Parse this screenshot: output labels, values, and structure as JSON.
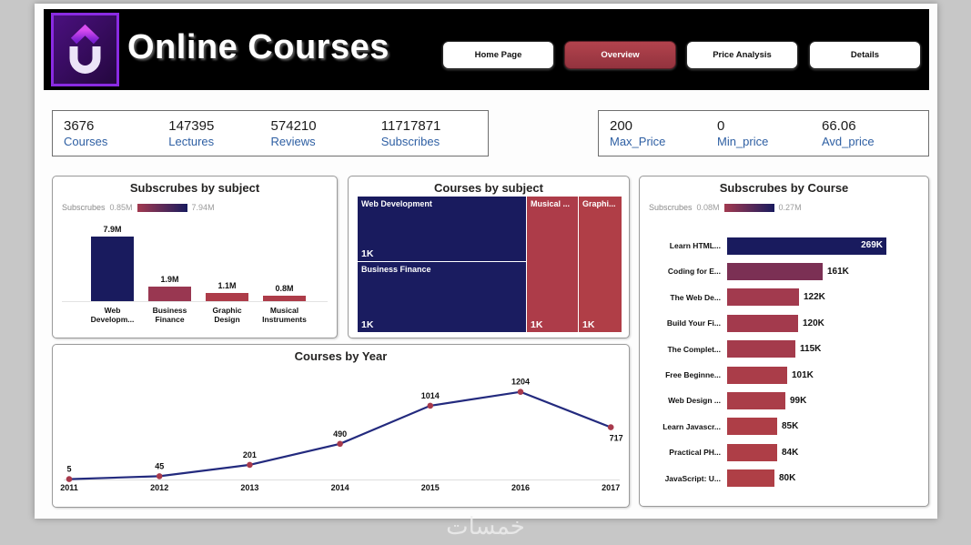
{
  "header": {
    "title": "Online Courses",
    "logo_letter": "U",
    "nav": [
      {
        "label": "Home Page",
        "active": false
      },
      {
        "label": "Overview",
        "active": true
      },
      {
        "label": "Price Analysis",
        "active": false
      },
      {
        "label": "Details",
        "active": false
      }
    ]
  },
  "kpi_left": [
    {
      "value": "3676",
      "label": "Courses"
    },
    {
      "value": "147395",
      "label": "Lectures"
    },
    {
      "value": "574210",
      "label": "Reviews"
    },
    {
      "value": "11717871",
      "label": "Subscribes"
    }
  ],
  "kpi_right": [
    {
      "value": "200",
      "label": "Max_Price"
    },
    {
      "value": "0",
      "label": "Min_price"
    },
    {
      "value": "66.06",
      "label": "Avd_price"
    }
  ],
  "colors": {
    "navy": "#191b5e",
    "maroon": "#ad3c49",
    "active_button": "#a83a44",
    "kpi_label_blue": "#2e5fa3",
    "header_bg": "#000000"
  },
  "chart_data": [
    {
      "type": "bar",
      "title": "Subscrubes by subject",
      "legend": {
        "label": "Subscrubes",
        "min": "0.85M",
        "max": "7.94M"
      },
      "categories": [
        "Web Developm...",
        "Business Finance",
        "Graphic Design",
        "Musical Instruments"
      ],
      "values": [
        7.9,
        1.9,
        1.1,
        0.8
      ],
      "value_labels": [
        "7.9M",
        "1.9M",
        "1.1M",
        "0.8M"
      ],
      "bar_colors": [
        "#191b5e",
        "#993751",
        "#ad3c49",
        "#ad3c49"
      ],
      "xlabel": "",
      "ylabel": "",
      "ylim": [
        0,
        8
      ]
    },
    {
      "type": "treemap",
      "title": "Courses by subject",
      "items": [
        {
          "label": "Web Development",
          "value_label": "1K",
          "color": "#191b5e"
        },
        {
          "label": "Business Finance",
          "value_label": "1K",
          "color": "#1a1c60"
        },
        {
          "label": "Musical ...",
          "value_label": "1K",
          "color": "#ad3c49"
        },
        {
          "label": "Graphi...",
          "value_label": "1K",
          "color": "#b03e47"
        }
      ]
    },
    {
      "type": "bar-horizontal",
      "title": "Subscrubes by Course",
      "legend": {
        "label": "Subscrubes",
        "min": "0.08M",
        "max": "0.27M"
      },
      "categories": [
        "Learn HTML...",
        "Coding for E...",
        "The Web De...",
        "Build Your Fi...",
        "The Complet...",
        "Free Beginne...",
        "Web Design ...",
        "Learn Javascr...",
        "Practical PH...",
        "JavaScript: U..."
      ],
      "values": [
        269,
        161,
        122,
        120,
        115,
        101,
        99,
        85,
        84,
        80
      ],
      "value_labels": [
        "269K",
        "161K",
        "122K",
        "120K",
        "115K",
        "101K",
        "99K",
        "85K",
        "84K",
        "80K"
      ],
      "bar_colors": [
        "#191b5e",
        "#7b3054",
        "#a23a4e",
        "#a33a4d",
        "#a43b4c",
        "#aa3d49",
        "#aa3d49",
        "#ae3e47",
        "#ae3e47",
        "#af3f46"
      ],
      "xlim": [
        0,
        280
      ]
    },
    {
      "type": "line",
      "title": "Courses by Year",
      "x": [
        "2011",
        "2012",
        "2013",
        "2014",
        "2015",
        "2016",
        "2017"
      ],
      "values": [
        5,
        45,
        201,
        490,
        1014,
        1204,
        717
      ],
      "line_color": "#232a7e",
      "marker_color": "#a83a4c",
      "grid": false,
      "ylim": [
        0,
        1300
      ]
    }
  ],
  "watermark": {
    "text": "خمسات"
  }
}
